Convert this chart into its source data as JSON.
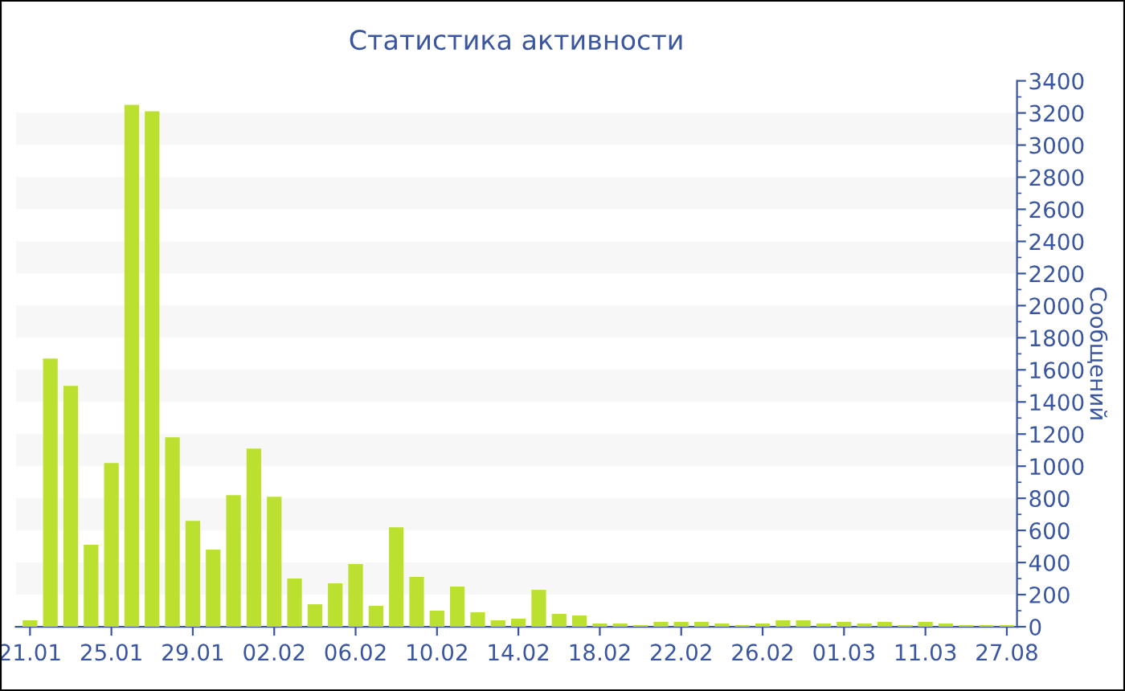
{
  "chart_data": {
    "type": "bar",
    "title": "Статистика активности",
    "ylabel": "Сообщений",
    "categories": [
      "21.01",
      null,
      null,
      null,
      "25.01",
      null,
      null,
      null,
      "29.01",
      null,
      null,
      null,
      "02.02",
      null,
      null,
      null,
      "06.02",
      null,
      null,
      null,
      "10.02",
      null,
      null,
      null,
      "14.02",
      null,
      null,
      null,
      "18.02",
      null,
      null,
      null,
      "22.02",
      null,
      null,
      null,
      "26.02",
      null,
      null,
      null,
      "01.03",
      null,
      null,
      null,
      "11.03",
      null,
      null,
      null,
      "27.08"
    ],
    "values": [
      40,
      1670,
      1500,
      510,
      1020,
      3250,
      3210,
      1180,
      660,
      480,
      820,
      1110,
      810,
      300,
      140,
      270,
      390,
      130,
      620,
      310,
      100,
      250,
      90,
      40,
      50,
      230,
      80,
      70,
      20,
      20,
      10,
      30,
      30,
      30,
      20,
      10,
      20,
      40,
      40,
      20,
      30,
      20,
      30,
      10,
      30,
      20,
      10,
      10,
      10
    ],
    "color": "#bce030",
    "ylim": [
      0,
      3400
    ],
    "yticks": [
      0,
      200,
      400,
      600,
      800,
      1000,
      1200,
      1400,
      1600,
      1800,
      2000,
      2200,
      2400,
      2600,
      2800,
      3000,
      3200,
      3400
    ],
    "bands": [
      {
        "axis": "y",
        "from": 200,
        "to": 400,
        "color": "#f7f7f7"
      },
      {
        "axis": "y",
        "from": 600,
        "to": 800,
        "color": "#f7f7f7"
      },
      {
        "axis": "y",
        "from": 1000,
        "to": 1200,
        "color": "#f7f7f7"
      },
      {
        "axis": "y",
        "from": 1400,
        "to": 1600,
        "color": "#f7f7f7"
      },
      {
        "axis": "y",
        "from": 1800,
        "to": 2000,
        "color": "#f7f7f7"
      },
      {
        "axis": "y",
        "from": 2200,
        "to": 2400,
        "color": "#f7f7f7"
      },
      {
        "axis": "y",
        "from": 2600,
        "to": 2800,
        "color": "#f7f7f7"
      },
      {
        "axis": "y",
        "from": 3000,
        "to": 3200,
        "color": "#f7f7f7"
      }
    ]
  }
}
